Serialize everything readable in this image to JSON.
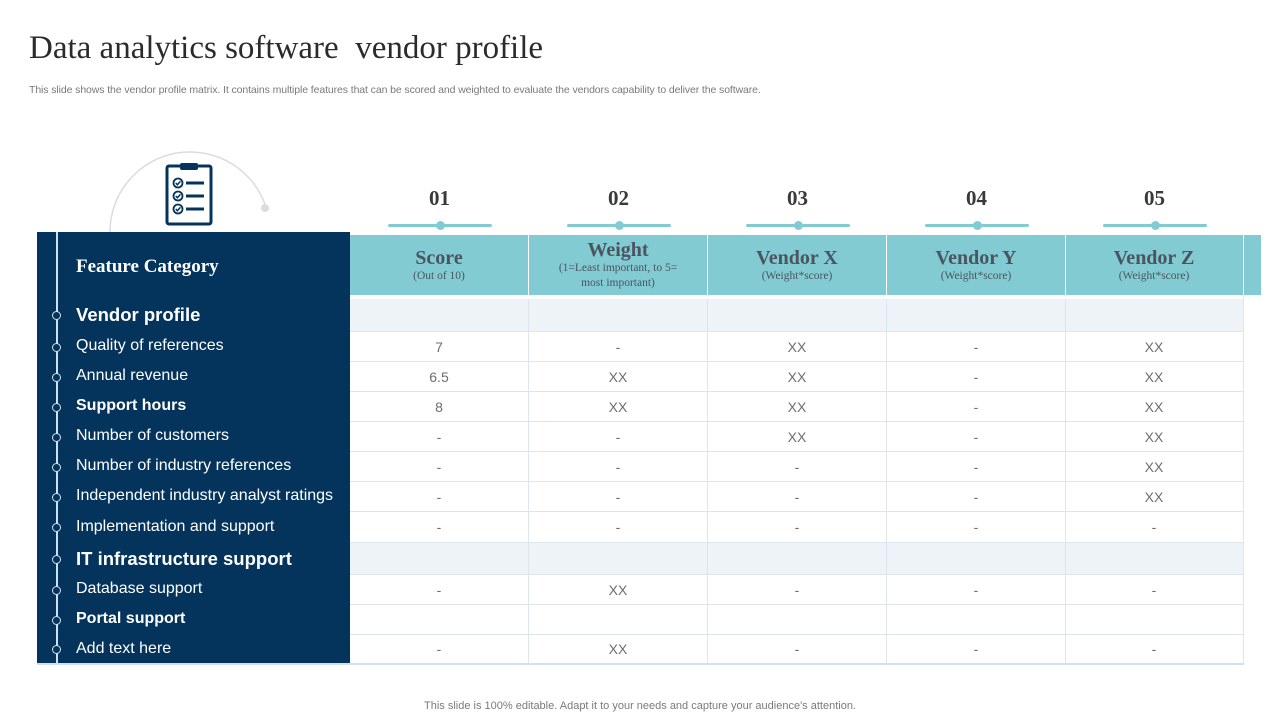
{
  "title": "Data analytics software  vendor profile",
  "subtitle": "This slide shows the vendor profile matrix. It contains multiple features that can be scored and weighted to evaluate the vendors capability to deliver the software.",
  "footer": "This slide is 100% editable. Adapt it to your needs and capture your audience's attention.",
  "icon": "clipboard-checklist-icon",
  "colors": {
    "navy": "#04345c",
    "teal": "#82cbd3",
    "shade": "#eef3f7"
  },
  "feature_header": "Feature Category",
  "columns": [
    {
      "num": "01",
      "main": "Score",
      "sub": "(Out of 10)"
    },
    {
      "num": "02",
      "main": "Weight",
      "sub": "(1=Least important, to 5= most important)"
    },
    {
      "num": "03",
      "main": "Vendor X",
      "sub": "(Weight*score)"
    },
    {
      "num": "04",
      "main": "Vendor Y",
      "sub": "(Weight*score)"
    },
    {
      "num": "05",
      "main": "Vendor Z",
      "sub": "(Weight*score)"
    }
  ],
  "rows": [
    {
      "label": "Vendor profile",
      "style": "section",
      "values": [
        "",
        "",
        "",
        "",
        ""
      ]
    },
    {
      "label": "Quality of references",
      "style": "normal",
      "values": [
        "7",
        "-",
        "XX",
        "-",
        "XX"
      ]
    },
    {
      "label": "Annual revenue",
      "style": "normal",
      "values": [
        "6.5",
        "XX",
        "XX",
        "-",
        "XX"
      ]
    },
    {
      "label": "Support hours",
      "style": "bold",
      "values": [
        "8",
        "XX",
        "XX",
        "-",
        "XX"
      ]
    },
    {
      "label": "Number of customers",
      "style": "normal",
      "values": [
        "-",
        "-",
        "XX",
        "-",
        "XX"
      ]
    },
    {
      "label": "Number of industry references",
      "style": "normal",
      "values": [
        "-",
        "-",
        "-",
        "-",
        "XX"
      ]
    },
    {
      "label": "Independent  industry analyst ratings",
      "style": "normal",
      "values": [
        "-",
        "-",
        "-",
        "-",
        "XX"
      ]
    },
    {
      "label": "Implementation  and support",
      "style": "normal",
      "values": [
        "-",
        "-",
        "-",
        "-",
        "-"
      ]
    },
    {
      "label": "IT infrastructure support",
      "style": "section",
      "values": [
        "",
        "",
        "",
        "",
        ""
      ]
    },
    {
      "label": "Database support",
      "style": "normal",
      "values": [
        "-",
        "XX",
        "-",
        "-",
        "-"
      ]
    },
    {
      "label": "Portal support",
      "style": "bold",
      "values": [
        "",
        "",
        "",
        "",
        ""
      ]
    },
    {
      "label": "Add text here",
      "style": "normal",
      "values": [
        "-",
        "XX",
        "-",
        "-",
        "-"
      ]
    }
  ]
}
